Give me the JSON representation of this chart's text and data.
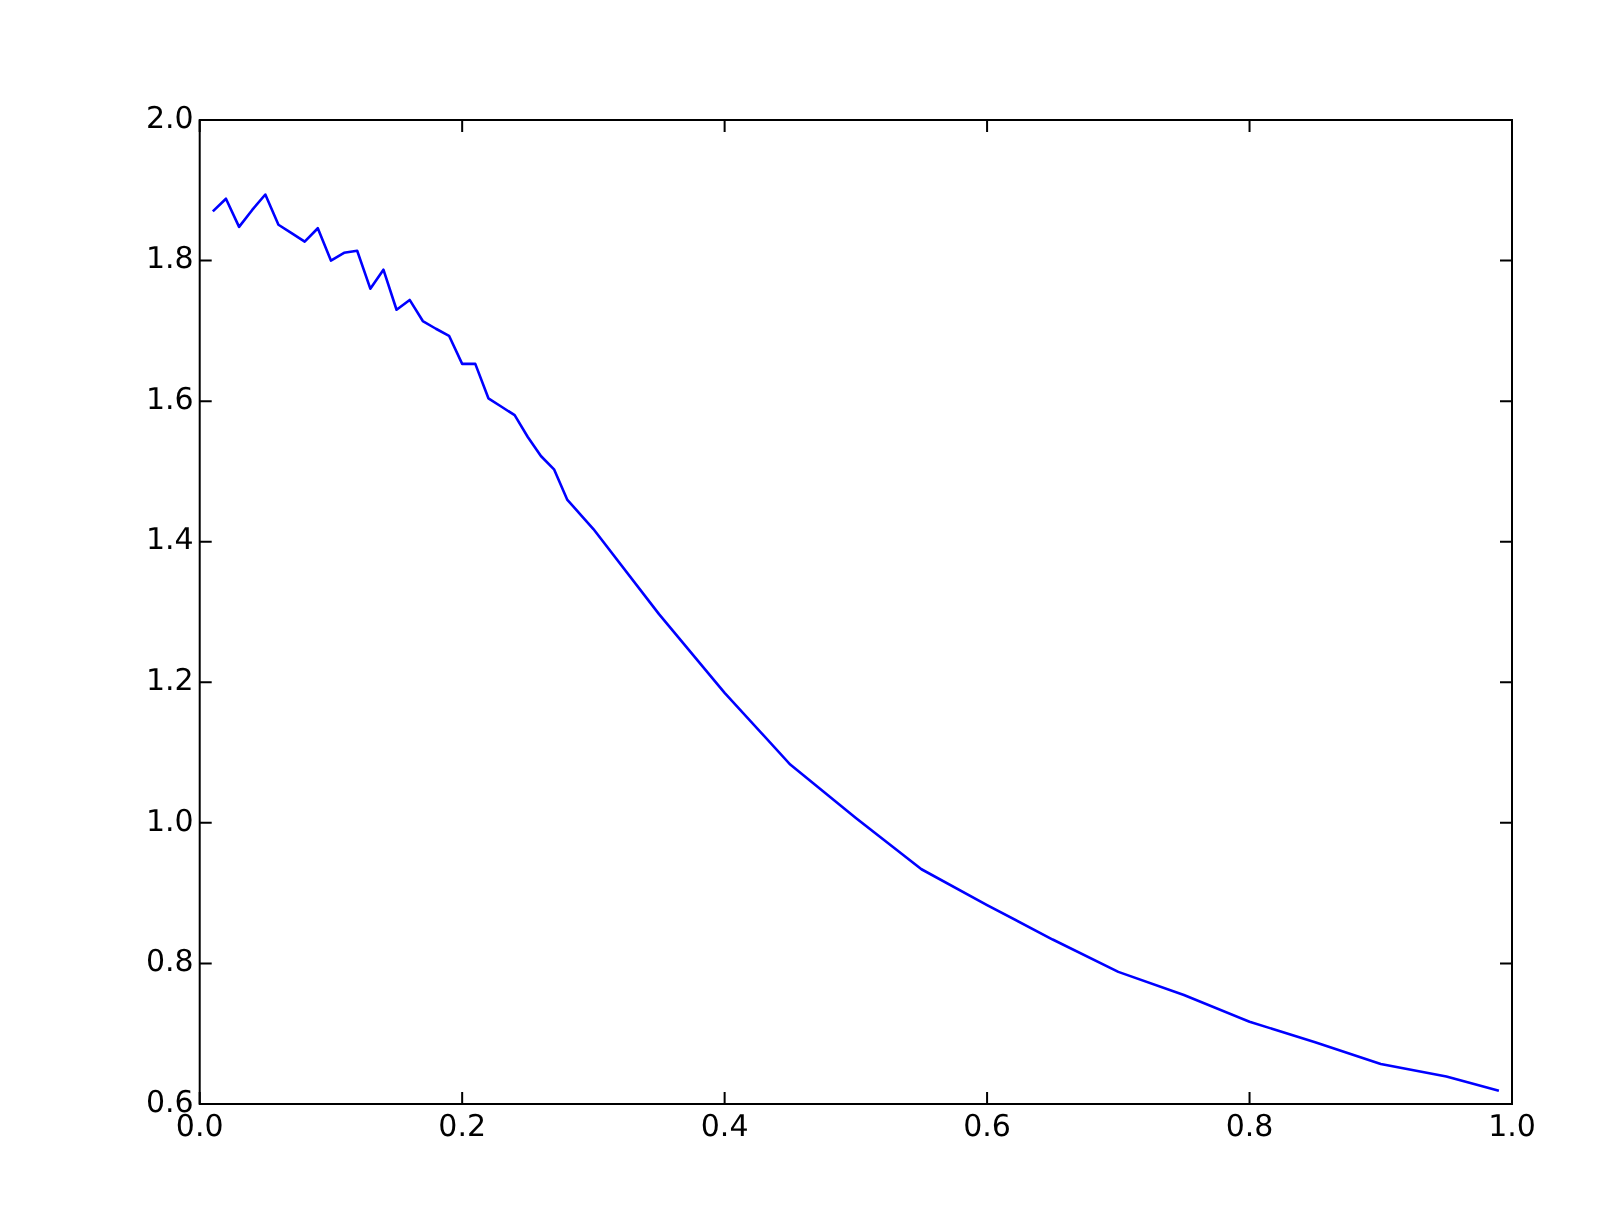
{
  "chart_data": {
    "type": "line",
    "x": [
      0.01,
      0.02,
      0.03,
      0.04,
      0.05,
      0.06,
      0.07,
      0.08,
      0.09,
      0.1,
      0.11,
      0.12,
      0.13,
      0.14,
      0.15,
      0.16,
      0.17,
      0.18,
      0.19,
      0.2,
      0.21,
      0.22,
      0.23,
      0.24,
      0.25,
      0.26,
      0.27,
      0.28,
      0.29,
      0.3,
      0.35,
      0.4,
      0.45,
      0.5,
      0.55,
      0.6,
      0.65,
      0.7,
      0.75,
      0.8,
      0.85,
      0.9,
      0.95,
      0.99
    ],
    "series": [
      {
        "color": "#0000ff",
        "values": [
          1.87,
          1.888,
          1.848,
          1.872,
          1.894,
          1.851,
          1.839,
          1.827,
          1.846,
          1.8,
          1.811,
          1.814,
          1.76,
          1.787,
          1.73,
          1.744,
          1.714,
          1.703,
          1.693,
          1.653,
          1.653,
          1.604,
          1.592,
          1.58,
          1.549,
          1.522,
          1.503,
          1.46,
          1.439,
          1.418,
          1.297,
          1.185,
          1.083,
          1.007,
          0.934,
          0.883,
          0.834,
          0.788,
          0.755,
          0.717,
          0.688,
          0.657,
          0.639,
          0.619
        ]
      }
    ],
    "xlim": [
      0,
      1
    ],
    "xticks": [
      {
        "value": 0,
        "label": "0.0"
      },
      0.2,
      0.4,
      0.6,
      0.8,
      {
        "value": 1,
        "label": "1.0"
      }
    ],
    "ylim": [
      0.6,
      2
    ],
    "yticks": [
      0.6,
      0.8,
      {
        "value": 1,
        "label": "1.0"
      },
      1.2,
      1.4,
      1.6,
      1.8,
      {
        "value": 2,
        "label": "2.0"
      }
    ],
    "grid": false,
    "legend": false,
    "marker": "none",
    "line_style": "solid"
  }
}
